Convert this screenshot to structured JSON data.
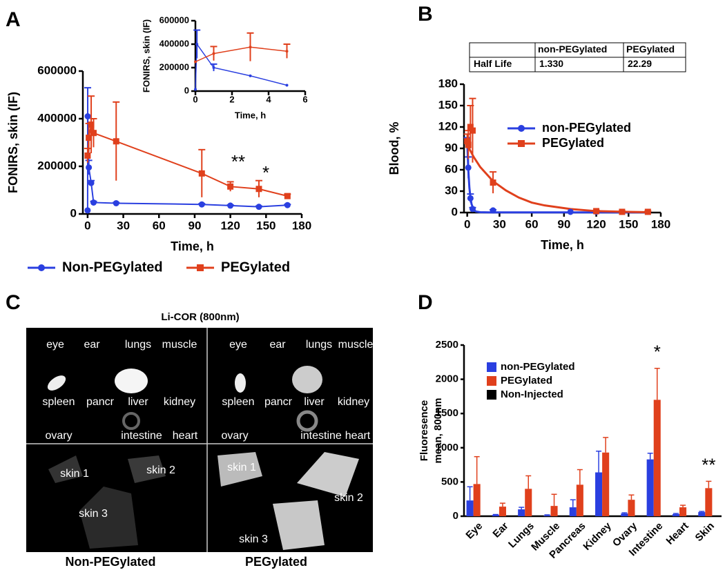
{
  "chart_data": [
    {
      "type": "line",
      "panel": "A",
      "x_label": "Time, h",
      "y_label": "FONIRS, skin (IF)",
      "xlim": [
        -4,
        180
      ],
      "ylim": [
        0,
        600000
      ],
      "xticks": [
        0,
        30,
        60,
        90,
        120,
        150,
        180
      ],
      "yticks": [
        0,
        200000,
        400000,
        600000
      ],
      "series": [
        {
          "name": "Non-PEGylated",
          "color": "#2a3fe0",
          "marker": "circle",
          "connect": true,
          "x": [
            0,
            0.083,
            1,
            3,
            5,
            24,
            96,
            120,
            144,
            168
          ],
          "values": [
            15000,
            410000,
            195000,
            130000,
            48000,
            45000,
            40000,
            35000,
            30000,
            37000
          ],
          "errors": [
            0,
            120000,
            30000,
            10000,
            5000,
            3000,
            3000,
            3000,
            3000,
            3000
          ]
        },
        {
          "name": "PEGylated",
          "color": "#e0401c",
          "marker": "square",
          "connect": true,
          "x": [
            0,
            1,
            3,
            5,
            24,
            96,
            120,
            144,
            168
          ],
          "values": [
            245000,
            320000,
            375000,
            340000,
            305000,
            170000,
            115000,
            105000,
            75000
          ],
          "errors": [
            30000,
            60000,
            120000,
            60000,
            165000,
            100000,
            20000,
            35000,
            8000
          ]
        }
      ],
      "annotations": [
        "**",
        "*"
      ],
      "inset": {
        "x_label": "Time, h",
        "y_label": "FONIRS, skin (IF)",
        "xlim": [
          0,
          6
        ],
        "ylim": [
          0,
          600000
        ],
        "xticks": [
          0,
          2,
          4,
          6
        ],
        "yticks": [
          0,
          200000,
          400000,
          600000
        ],
        "series": [
          {
            "color": "#2a3fe0",
            "marker": "none",
            "connect": true,
            "x": [
              0,
              0.083,
              1,
              3,
              5
            ],
            "values": [
              15000,
              400000,
              200000,
              130000,
              50000
            ],
            "errors": [
              0,
              120000,
              30000,
              0,
              0
            ]
          },
          {
            "color": "#e0401c",
            "marker": "none",
            "connect": true,
            "x": [
              0,
              1,
              3,
              5
            ],
            "values": [
              250000,
              320000,
              375000,
              340000
            ],
            "errors": [
              0,
              60000,
              120000,
              60000
            ]
          }
        ]
      }
    },
    {
      "type": "scatter",
      "panel": "B",
      "x_label": "Time, h",
      "y_label": "Blood, %",
      "xlim": [
        -3,
        180
      ],
      "ylim": [
        0,
        180
      ],
      "xticks": [
        0,
        30,
        60,
        90,
        120,
        150,
        180
      ],
      "yticks": [
        0,
        30,
        60,
        90,
        120,
        150,
        180
      ],
      "series": [
        {
          "name": "non-PEGylated",
          "color": "#2a3fe0",
          "marker": "circle",
          "connect": false,
          "x": [
            0,
            1,
            3,
            5,
            24,
            96,
            120,
            144,
            168
          ],
          "values": [
            100,
            63,
            20,
            5,
            3,
            1,
            1,
            1,
            1
          ],
          "errors": [
            5,
            15,
            6,
            2,
            1,
            0,
            0,
            0,
            0
          ]
        },
        {
          "name": "PEGylated",
          "color": "#e0401c",
          "marker": "square",
          "connect": false,
          "x": [
            0,
            1,
            3,
            5,
            24,
            120,
            144,
            168
          ],
          "values": [
            100,
            95,
            120,
            115,
            42,
            2,
            1,
            1
          ],
          "errors": [
            10,
            20,
            30,
            45,
            15,
            1,
            1,
            1
          ]
        }
      ],
      "fits": [
        {
          "color": "#2a3fe0",
          "x": [
            0,
            1,
            2,
            3,
            4,
            6,
            8,
            12,
            20,
            40,
            100,
            170
          ],
          "values": [
            100,
            60,
            35,
            21,
            12,
            4,
            1.5,
            0.5,
            0.3,
            0.2,
            0.2,
            0.2
          ]
        },
        {
          "color": "#e0401c",
          "x": [
            0,
            6,
            12,
            24,
            36,
            48,
            60,
            72,
            96,
            120,
            150,
            170
          ],
          "values": [
            95,
            78,
            64,
            44,
            31,
            21,
            14,
            10,
            5,
            2,
            1,
            0.5
          ]
        }
      ],
      "table": {
        "header": [
          "non-PEGylated",
          "PEGylated"
        ],
        "rows": [
          [
            "Half Life",
            "1.330",
            "22.29"
          ]
        ]
      }
    },
    {
      "type": "bar",
      "panel": "D",
      "y_label": [
        "Fluoresence",
        "mean, 800nm"
      ],
      "categories": [
        "Eye",
        "Ear",
        "Lungs",
        "Muscle",
        "Pancreas",
        "Kidney",
        "Ovary",
        "Intestine",
        "Heart",
        "Skin"
      ],
      "ylim": [
        0,
        2500
      ],
      "yticks": [
        0,
        500,
        1000,
        1500,
        2000,
        2500
      ],
      "series": [
        {
          "name": "non-PEGylated",
          "color": "#2a3fe0",
          "values": [
            230,
            20,
            100,
            10,
            130,
            640,
            40,
            830,
            30,
            60
          ],
          "errors": [
            200,
            5,
            30,
            10,
            110,
            310,
            10,
            90,
            10,
            10
          ]
        },
        {
          "name": "PEGylated",
          "color": "#e0401c",
          "values": [
            470,
            140,
            400,
            150,
            460,
            930,
            240,
            1700,
            130,
            410
          ],
          "errors": [
            400,
            50,
            190,
            170,
            220,
            220,
            70,
            460,
            30,
            100
          ]
        },
        {
          "name": "Non-Injected",
          "color": "#000000",
          "values": [
            5,
            5,
            5,
            5,
            5,
            5,
            5,
            5,
            5,
            5
          ],
          "errors": [
            0,
            0,
            0,
            0,
            0,
            0,
            0,
            0,
            0,
            0
          ]
        }
      ],
      "annotations": [
        "*",
        "**"
      ]
    }
  ],
  "image_panel": {
    "panel": "C",
    "title": "Li-COR (800nm)",
    "groups": [
      {
        "caption": "Non-PEGylated",
        "labels": [
          "eye",
          "ear",
          "lungs",
          "muscle",
          "spleen",
          "pancr",
          "liver",
          "kidney",
          "ovary",
          "intestine",
          "heart",
          "skin 1",
          "skin 2",
          "skin 3"
        ]
      },
      {
        "caption": "PEGylated",
        "labels": [
          "eye",
          "ear",
          "lungs",
          "muscle",
          "spleen",
          "pancr",
          "liver",
          "kidney",
          "ovary",
          "intestine",
          "heart",
          "skin 1",
          "skin 2",
          "skin 3"
        ]
      }
    ]
  }
}
